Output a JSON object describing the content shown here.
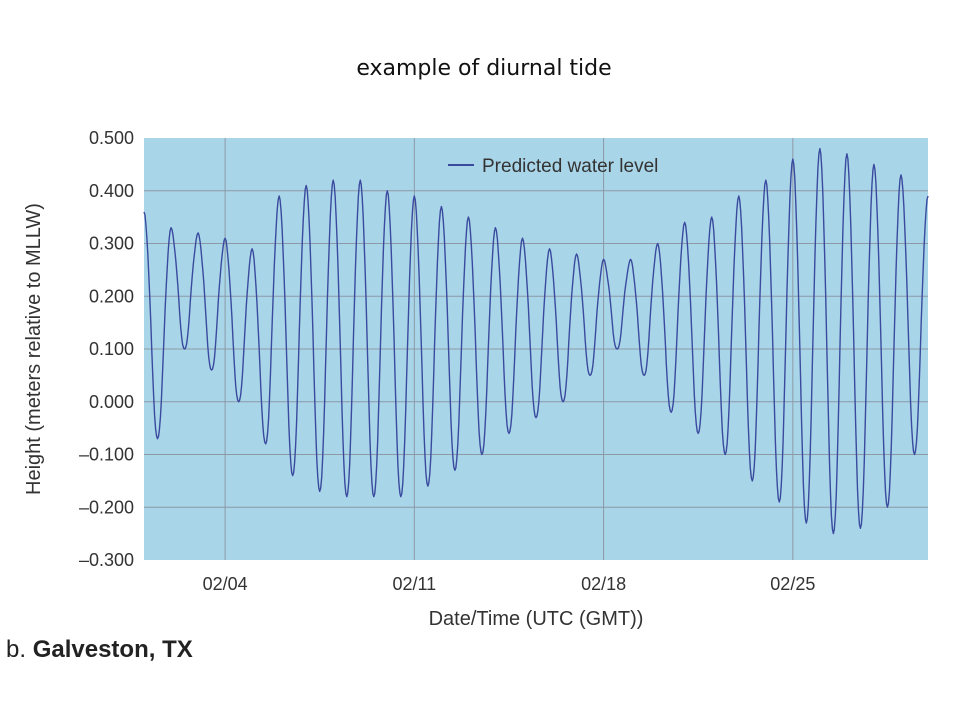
{
  "slide": {
    "title": "example of diurnal tide"
  },
  "caption": {
    "prefix": "b.",
    "location": "Galveston, TX"
  },
  "colors": {
    "plot_background": "#a9d5e8",
    "line": "#3a4a9e",
    "grid": "#8c9aa6",
    "text": "#333333"
  },
  "chart_data": {
    "type": "line",
    "title": "",
    "xlabel": "Date/Time (UTC (GMT))",
    "ylabel": "Height (meters relative to MLLW)",
    "ylim": [
      -0.3,
      0.5
    ],
    "xlim": [
      "2012-02-01",
      "2012-03-01"
    ],
    "y_ticks": [
      -0.3,
      -0.2,
      -0.1,
      0.0,
      0.1,
      0.2,
      0.3,
      0.4,
      0.5
    ],
    "y_tick_labels": [
      "–0.300",
      "–0.200",
      "–0.100",
      "0.000",
      "0.100",
      "0.200",
      "0.300",
      "0.400",
      "0.500"
    ],
    "x_ticks": [
      "2012-02-04",
      "2012-02-11",
      "2012-02-18",
      "2012-02-25"
    ],
    "x_tick_labels": [
      "02/04",
      "02/11",
      "02/18",
      "02/25"
    ],
    "grid": true,
    "legend_position": "top-center",
    "series": [
      {
        "name": "Predicted water level",
        "x": [
          "2012-02-01T00:00",
          "2012-02-01T12:00",
          "2012-02-02T00:00",
          "2012-02-02T12:00",
          "2012-02-03T00:00",
          "2012-02-03T12:00",
          "2012-02-04T00:00",
          "2012-02-04T12:00",
          "2012-02-05T00:00",
          "2012-02-05T12:00",
          "2012-02-06T00:00",
          "2012-02-06T12:00",
          "2012-02-07T00:00",
          "2012-02-07T12:00",
          "2012-02-08T00:00",
          "2012-02-08T12:00",
          "2012-02-09T00:00",
          "2012-02-09T12:00",
          "2012-02-10T00:00",
          "2012-02-10T12:00",
          "2012-02-11T00:00",
          "2012-02-11T12:00",
          "2012-02-12T00:00",
          "2012-02-12T12:00",
          "2012-02-13T00:00",
          "2012-02-13T12:00",
          "2012-02-14T00:00",
          "2012-02-14T12:00",
          "2012-02-15T00:00",
          "2012-02-15T12:00",
          "2012-02-16T00:00",
          "2012-02-16T12:00",
          "2012-02-17T00:00",
          "2012-02-17T12:00",
          "2012-02-18T00:00",
          "2012-02-18T12:00",
          "2012-02-19T00:00",
          "2012-02-19T12:00",
          "2012-02-20T00:00",
          "2012-02-20T12:00",
          "2012-02-21T00:00",
          "2012-02-21T12:00",
          "2012-02-22T00:00",
          "2012-02-22T12:00",
          "2012-02-23T00:00",
          "2012-02-23T12:00",
          "2012-02-24T00:00",
          "2012-02-24T12:00",
          "2012-02-25T00:00",
          "2012-02-25T12:00",
          "2012-02-26T00:00",
          "2012-02-26T12:00",
          "2012-02-27T00:00",
          "2012-02-27T12:00",
          "2012-02-28T00:00",
          "2012-02-28T12:00",
          "2012-02-29T00:00",
          "2012-02-29T12:00",
          "2012-03-01T00:00"
        ],
        "y": [
          0.36,
          -0.07,
          0.33,
          0.1,
          0.32,
          0.06,
          0.31,
          0.0,
          0.29,
          -0.08,
          0.39,
          -0.14,
          0.41,
          -0.17,
          0.42,
          -0.18,
          0.42,
          -0.18,
          0.4,
          -0.18,
          0.39,
          -0.16,
          0.37,
          -0.13,
          0.35,
          -0.1,
          0.33,
          -0.06,
          0.31,
          -0.03,
          0.29,
          0.0,
          0.28,
          0.05,
          0.27,
          0.1,
          0.27,
          0.05,
          0.3,
          -0.02,
          0.34,
          -0.06,
          0.35,
          -0.1,
          0.39,
          -0.15,
          0.42,
          -0.19,
          0.46,
          -0.23,
          0.48,
          -0.25,
          0.47,
          -0.24,
          0.45,
          -0.2,
          0.43,
          -0.1,
          0.39
        ]
      }
    ]
  }
}
